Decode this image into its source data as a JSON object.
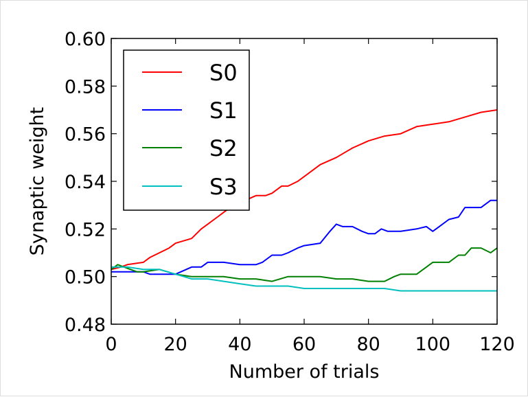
{
  "chart_data": {
    "type": "line",
    "title": "",
    "xlabel": "Number of trials",
    "ylabel": "Synaptic weight",
    "xlim": [
      0,
      120
    ],
    "ylim": [
      0.48,
      0.6
    ],
    "xticks": [
      "0",
      "20",
      "40",
      "60",
      "80",
      "100",
      "120"
    ],
    "yticks": [
      "0.48",
      "0.50",
      "0.52",
      "0.54",
      "0.56",
      "0.58",
      "0.60"
    ],
    "grid": false,
    "legend_position": "top-left",
    "series": [
      {
        "name": "S0",
        "color": "#ff0000",
        "x": [
          0,
          3,
          5,
          10,
          12,
          15,
          18,
          20,
          25,
          28,
          30,
          33,
          35,
          37,
          40,
          45,
          48,
          50,
          53,
          55,
          58,
          60,
          65,
          70,
          75,
          80,
          85,
          90,
          95,
          100,
          105,
          110,
          115,
          120
        ],
        "y": [
          0.503,
          0.504,
          0.505,
          0.506,
          0.508,
          0.51,
          0.512,
          0.514,
          0.516,
          0.52,
          0.522,
          0.525,
          0.527,
          0.529,
          0.531,
          0.534,
          0.534,
          0.535,
          0.538,
          0.538,
          0.54,
          0.542,
          0.547,
          0.55,
          0.554,
          0.557,
          0.559,
          0.56,
          0.563,
          0.564,
          0.565,
          0.567,
          0.569,
          0.57
        ]
      },
      {
        "name": "S1",
        "color": "#0000ff",
        "x": [
          0,
          5,
          10,
          12,
          15,
          20,
          25,
          28,
          30,
          35,
          40,
          45,
          47,
          50,
          53,
          55,
          58,
          60,
          65,
          68,
          70,
          72,
          75,
          78,
          80,
          82,
          84,
          86,
          88,
          90,
          95,
          98,
          100,
          102,
          105,
          108,
          110,
          115,
          118,
          120
        ],
        "y": [
          0.502,
          0.502,
          0.502,
          0.501,
          0.501,
          0.501,
          0.504,
          0.504,
          0.506,
          0.506,
          0.505,
          0.505,
          0.506,
          0.509,
          0.509,
          0.51,
          0.512,
          0.513,
          0.514,
          0.519,
          0.522,
          0.521,
          0.521,
          0.519,
          0.518,
          0.518,
          0.52,
          0.519,
          0.519,
          0.519,
          0.52,
          0.521,
          0.519,
          0.521,
          0.524,
          0.525,
          0.529,
          0.529,
          0.532,
          0.532
        ]
      },
      {
        "name": "S2",
        "color": "#008000",
        "x": [
          0,
          2,
          4,
          6,
          8,
          10,
          15,
          20,
          25,
          30,
          35,
          40,
          45,
          50,
          55,
          60,
          65,
          70,
          75,
          80,
          85,
          88,
          90,
          95,
          98,
          100,
          105,
          108,
          110,
          112,
          115,
          118,
          120
        ],
        "y": [
          0.503,
          0.505,
          0.504,
          0.503,
          0.502,
          0.502,
          0.503,
          0.501,
          0.5,
          0.5,
          0.5,
          0.499,
          0.499,
          0.498,
          0.5,
          0.5,
          0.5,
          0.499,
          0.499,
          0.498,
          0.498,
          0.5,
          0.501,
          0.501,
          0.504,
          0.506,
          0.506,
          0.509,
          0.509,
          0.512,
          0.512,
          0.51,
          0.512
        ]
      },
      {
        "name": "S3",
        "color": "#00bfbf",
        "x": [
          0,
          5,
          10,
          15,
          20,
          25,
          30,
          35,
          40,
          45,
          50,
          55,
          60,
          65,
          70,
          75,
          80,
          85,
          90,
          95,
          100,
          105,
          110,
          115,
          120
        ],
        "y": [
          0.504,
          0.504,
          0.503,
          0.503,
          0.501,
          0.499,
          0.499,
          0.498,
          0.497,
          0.496,
          0.496,
          0.496,
          0.495,
          0.495,
          0.495,
          0.495,
          0.495,
          0.495,
          0.494,
          0.494,
          0.494,
          0.494,
          0.494,
          0.494,
          0.494
        ]
      }
    ]
  }
}
